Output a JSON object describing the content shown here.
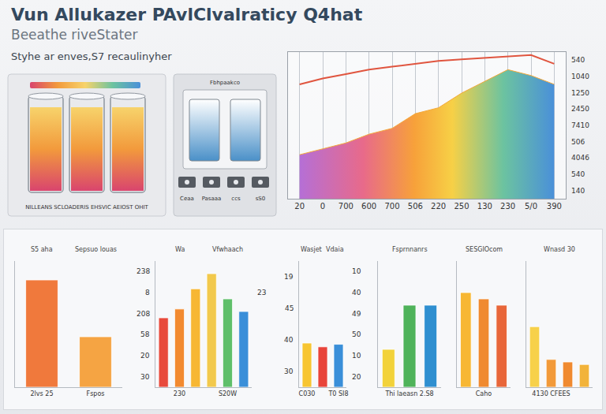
{
  "header": {
    "title": "Vun Allukazer PAvlClvalraticy Q4hat",
    "subtitle": "Beeathe riveStater",
    "tagline": "Styhe ar enves,S7 recaulinyher"
  },
  "illustration": {
    "device_label": "Fbhpaakco",
    "buttons": [
      "Ceaa",
      "Pasaaa",
      "ccs",
      "sS0"
    ],
    "caption": "NILLEANS SCLOADERIS EHSVIC AEIOST OHIT"
  },
  "chart_data": [
    {
      "type": "line",
      "categories": [
        "20",
        "0",
        "700",
        "600",
        "700",
        "506",
        "220",
        "250",
        "130",
        "230",
        "5/0",
        "390"
      ],
      "series": [
        {
          "type": "area",
          "color": "#f4a93b",
          "values": [
            30,
            34,
            38,
            44,
            48,
            58,
            62,
            72,
            80,
            88,
            84,
            78
          ]
        },
        {
          "type": "line",
          "color": "#e0553f",
          "values": [
            78,
            82,
            85,
            88,
            90,
            92,
            94,
            95,
            96,
            97,
            98,
            92
          ]
        }
      ],
      "ylim": [
        0,
        100
      ],
      "tick_labels": "x",
      "grid": true,
      "right_labels": [
        "540",
        "1040",
        "1250",
        "2450",
        "7410",
        "506",
        "4046",
        "540",
        "140"
      ]
    },
    {
      "type": "bar",
      "headers": [
        "S5 aha",
        "Sepsuo louas"
      ],
      "categories": [
        "2lvs 25",
        "Fspos"
      ],
      "values": [
        85,
        40
      ],
      "colors": [
        "#f0793c",
        "#f5a443"
      ],
      "ylim": [
        0,
        100
      ],
      "tick_labels": "x"
    },
    {
      "type": "bar",
      "headers": [
        "Wa",
        "Vfwhaach"
      ],
      "categories": [
        null,
        "230",
        null,
        null,
        "S20W",
        null
      ],
      "values": [
        55,
        62,
        78,
        90,
        70,
        60
      ],
      "colors": [
        "#e84a3c",
        "#f28a30",
        "#f7b733",
        "#f2c94c",
        "#5fbf6a",
        "#3a8fd9"
      ],
      "ylim": [
        0,
        100
      ],
      "tick_labels": "x",
      "left_labels": [
        "238",
        "8",
        "208",
        "58",
        "20",
        "30"
      ],
      "right_labels": [
        "23"
      ]
    },
    {
      "type": "bar",
      "headers": [
        "Wasjet",
        "Vdaia"
      ],
      "categories": [
        "C030",
        null,
        "T0 SI8"
      ],
      "values": [
        35,
        32,
        34
      ],
      "colors": [
        "#f7c531",
        "#e8443a",
        "#3a8fd9"
      ],
      "ylim": [
        0,
        100
      ],
      "tick_labels": "x",
      "left_labels": [
        "19",
        "45",
        "40",
        "30"
      ],
      "right_labels": [
        "10",
        "40",
        "49",
        "50",
        "10",
        "20"
      ]
    },
    {
      "type": "bar",
      "headers": [
        "Fsprnnanrs"
      ],
      "categories": [
        null,
        "Thi laeasn 2.S8",
        null
      ],
      "values": [
        30,
        65,
        65
      ],
      "colors": [
        "#f2d23a",
        "#4fb35a",
        "#2f8fd0"
      ],
      "ylim": [
        0,
        100
      ],
      "tick_labels": "x"
    },
    {
      "type": "bar",
      "headers": [
        "SESGIOcom"
      ],
      "categories": [
        null,
        "Caho",
        null
      ],
      "values": [
        75,
        70,
        65
      ],
      "colors": [
        "#f7b733",
        "#f08a30",
        "#e8663a"
      ],
      "ylim": [
        0,
        100
      ],
      "tick_labels": "x"
    },
    {
      "type": "bar",
      "headers": [
        "Wnasd 30"
      ],
      "categories": [
        null,
        "4130 CFEES",
        null,
        null
      ],
      "values": [
        48,
        22,
        20,
        18
      ],
      "colors": [
        "#f7d14a",
        "#f29a3a",
        "#f08a30",
        "#f2b33a"
      ],
      "ylim": [
        0,
        100
      ],
      "tick_labels": "x"
    }
  ]
}
